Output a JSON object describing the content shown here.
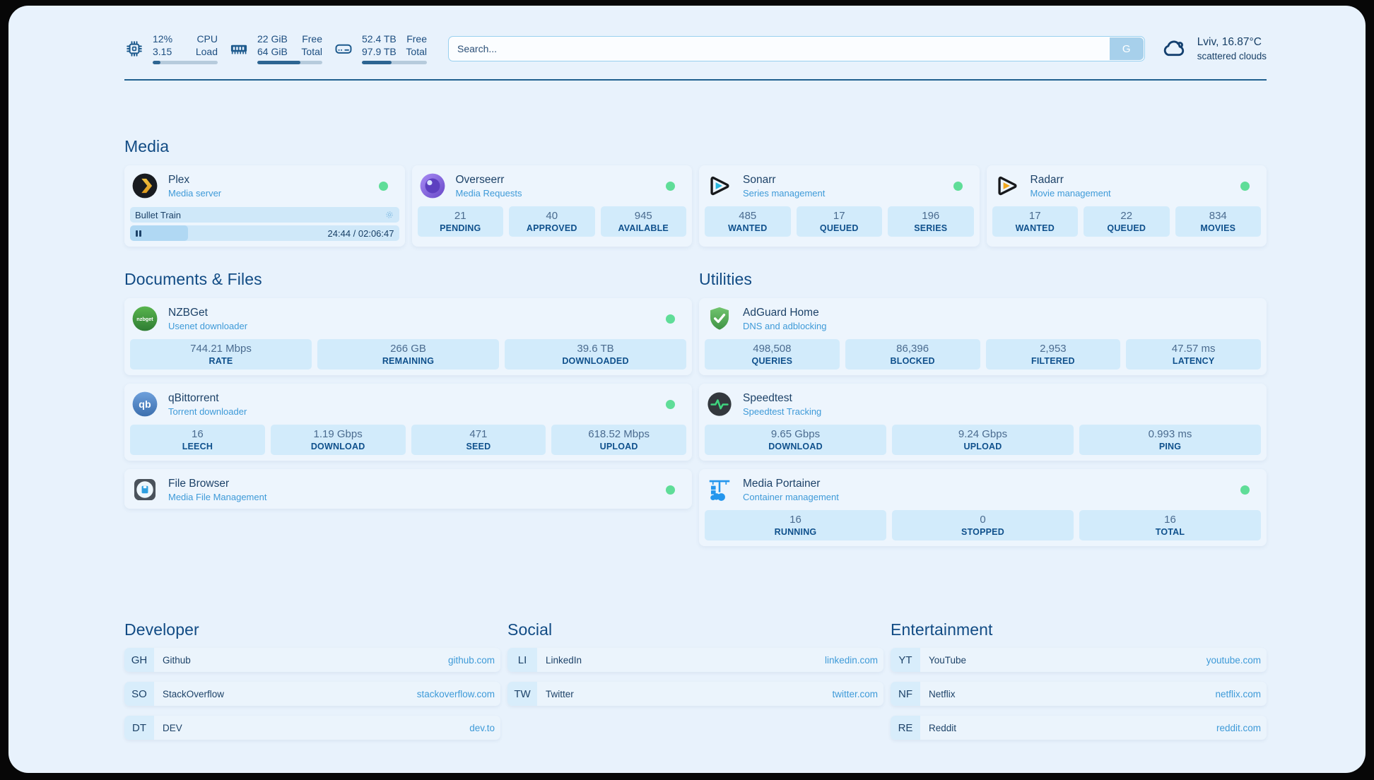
{
  "topbar": {
    "resources": [
      {
        "icon": "cpu-icon",
        "values": [
          "12%",
          "3.15"
        ],
        "labels": [
          "CPU",
          "Load"
        ],
        "progress": 12
      },
      {
        "icon": "ram-icon",
        "values": [
          "22 GiB",
          "64 GiB"
        ],
        "labels": [
          "Free",
          "Total"
        ],
        "progress": 66
      },
      {
        "icon": "disk-icon",
        "values": [
          "52.4 TB",
          "97.9 TB"
        ],
        "labels": [
          "Free",
          "Total"
        ],
        "progress": 46
      }
    ],
    "search": {
      "placeholder": "Search...",
      "button_label": "G"
    },
    "weather": {
      "icon": "cloud-icon",
      "location_temp": "Lviv, 16.87°C",
      "condition": "scattered clouds"
    }
  },
  "sections": {
    "media": {
      "title": "Media",
      "plex": {
        "icon": "plex-icon",
        "title": "Plex",
        "subtitle": "Media server",
        "now_playing": "Bullet Train",
        "time_display": "24:44 / 02:06:47",
        "progress": 19.5
      },
      "overseerr": {
        "icon": "overseerr-icon",
        "title": "Overseerr",
        "subtitle": "Media Requests",
        "stats": [
          {
            "value": "21",
            "label": "PENDING"
          },
          {
            "value": "40",
            "label": "APPROVED"
          },
          {
            "value": "945",
            "label": "AVAILABLE"
          }
        ]
      },
      "sonarr": {
        "icon": "sonarr-icon",
        "title": "Sonarr",
        "subtitle": "Series management",
        "stats": [
          {
            "value": "485",
            "label": "WANTED"
          },
          {
            "value": "17",
            "label": "QUEUED"
          },
          {
            "value": "196",
            "label": "SERIES"
          }
        ]
      },
      "radarr": {
        "icon": "radarr-icon",
        "title": "Radarr",
        "subtitle": "Movie management",
        "stats": [
          {
            "value": "17",
            "label": "WANTED"
          },
          {
            "value": "22",
            "label": "QUEUED"
          },
          {
            "value": "834",
            "label": "MOVIES"
          }
        ]
      }
    },
    "documents": {
      "title": "Documents & Files",
      "nzbget": {
        "icon": "nzbget-icon",
        "title": "NZBGet",
        "subtitle": "Usenet downloader",
        "stats": [
          {
            "value": "744.21 Mbps",
            "label": "RATE"
          },
          {
            "value": "266 GB",
            "label": "REMAINING"
          },
          {
            "value": "39.6 TB",
            "label": "DOWNLOADED"
          }
        ]
      },
      "qbittorrent": {
        "icon": "qbittorrent-icon",
        "title": "qBittorrent",
        "subtitle": "Torrent downloader",
        "stats": [
          {
            "value": "16",
            "label": "LEECH"
          },
          {
            "value": "1.19 Gbps",
            "label": "DOWNLOAD"
          },
          {
            "value": "471",
            "label": "SEED"
          },
          {
            "value": "618.52 Mbps",
            "label": "UPLOAD"
          }
        ]
      },
      "filebrowser": {
        "icon": "filebrowser-icon",
        "title": "File Browser",
        "subtitle": "Media File Management"
      }
    },
    "utilities": {
      "title": "Utilities",
      "adguard": {
        "icon": "adguard-icon",
        "title": "AdGuard Home",
        "subtitle": "DNS and adblocking",
        "stats": [
          {
            "value": "498,508",
            "label": "QUERIES"
          },
          {
            "value": "86,396",
            "label": "BLOCKED"
          },
          {
            "value": "2,953",
            "label": "FILTERED"
          },
          {
            "value": "47.57 ms",
            "label": "LATENCY"
          }
        ]
      },
      "speedtest": {
        "icon": "speedtest-icon",
        "title": "Speedtest",
        "subtitle": "Speedtest Tracking",
        "stats": [
          {
            "value": "9.65 Gbps",
            "label": "DOWNLOAD"
          },
          {
            "value": "9.24 Gbps",
            "label": "UPLOAD"
          },
          {
            "value": "0.993 ms",
            "label": "PING"
          }
        ]
      },
      "portainer": {
        "icon": "portainer-icon",
        "title": "Media Portainer",
        "subtitle": "Container management",
        "stats": [
          {
            "value": "16",
            "label": "RUNNING"
          },
          {
            "value": "0",
            "label": "STOPPED"
          },
          {
            "value": "16",
            "label": "TOTAL"
          }
        ]
      }
    }
  },
  "bookmarks": [
    {
      "title": "Developer",
      "items": [
        {
          "abbr": "GH",
          "name": "Github",
          "url": "github.com"
        },
        {
          "abbr": "SO",
          "name": "StackOverflow",
          "url": "stackoverflow.com"
        },
        {
          "abbr": "DT",
          "name": "DEV",
          "url": "dev.to"
        }
      ]
    },
    {
      "title": "Social",
      "items": [
        {
          "abbr": "LI",
          "name": "LinkedIn",
          "url": "linkedin.com"
        },
        {
          "abbr": "TW",
          "name": "Twitter",
          "url": "twitter.com"
        }
      ]
    },
    {
      "title": "Entertainment",
      "items": [
        {
          "abbr": "YT",
          "name": "YouTube",
          "url": "youtube.com"
        },
        {
          "abbr": "NF",
          "name": "Netflix",
          "url": "netflix.com"
        },
        {
          "abbr": "RE",
          "name": "Reddit",
          "url": "reddit.com"
        }
      ]
    }
  ],
  "colors": {
    "page_bg": "#e3eefa",
    "card_bg": "#edf5fd",
    "tile_bg": "#d2ebfb",
    "accent_navy": "#1d4e80",
    "link_blue": "#3e9ad8",
    "status_green": "#5fdd98"
  }
}
